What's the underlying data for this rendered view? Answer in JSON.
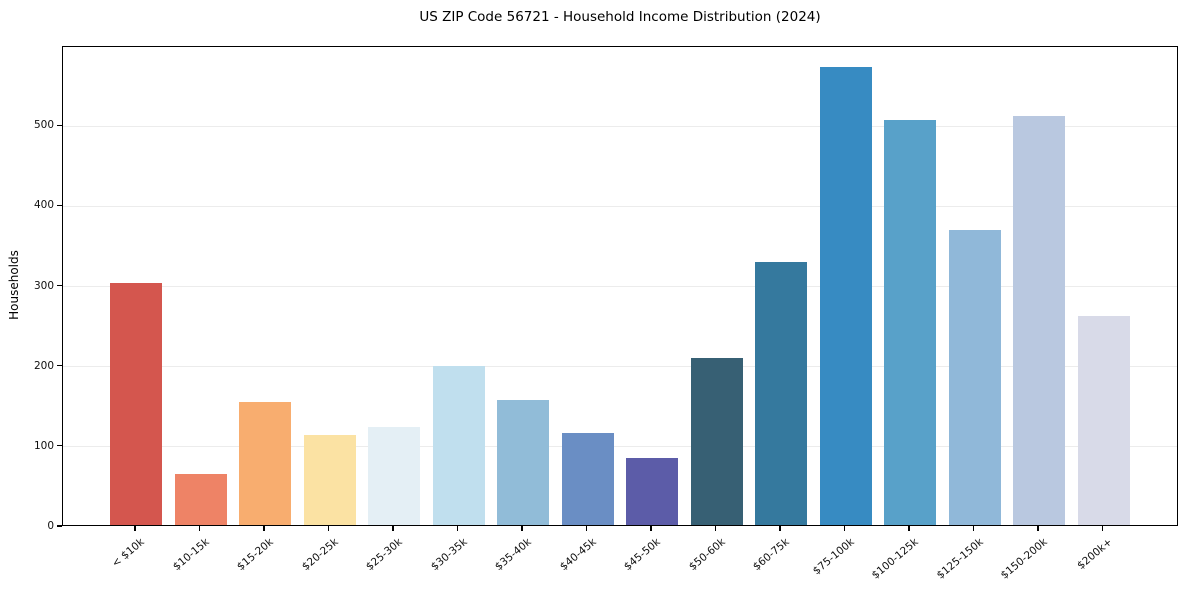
{
  "chart_data": {
    "type": "bar",
    "title": "US ZIP Code 56721 - Household Income Distribution (2024)",
    "xlabel": "",
    "ylabel": "Households",
    "categories": [
      "< $10k",
      "$10-15k",
      "$15-20k",
      "$20-25k",
      "$25-30k",
      "$30-35k",
      "$35-40k",
      "$40-45k",
      "$45-50k",
      "$50-60k",
      "$60-75k",
      "$75-100k",
      "$100-125k",
      "$125-150k",
      "$150-200k",
      "$200k+"
    ],
    "values": [
      302,
      64,
      153,
      112,
      122,
      199,
      156,
      115,
      84,
      209,
      328,
      571,
      505,
      368,
      511,
      261
    ],
    "bar_colors": [
      "#d4564e",
      "#ee8366",
      "#f8ad6f",
      "#fbe2a3",
      "#e4eff5",
      "#c0dfee",
      "#91bcd8",
      "#6a8ec4",
      "#5c5ca8",
      "#376074",
      "#35799e",
      "#378bc2",
      "#58a1c9",
      "#90b8d9",
      "#b9c8e0",
      "#d8dae8"
    ],
    "ylim": [
      0,
      599
    ],
    "yticks": [
      0,
      100,
      200,
      300,
      400,
      500
    ],
    "grid": "horizontal",
    "legend": "none",
    "background_color": "#ffffff",
    "axis_color": "#000000",
    "gridline_color": "#ececec"
  }
}
